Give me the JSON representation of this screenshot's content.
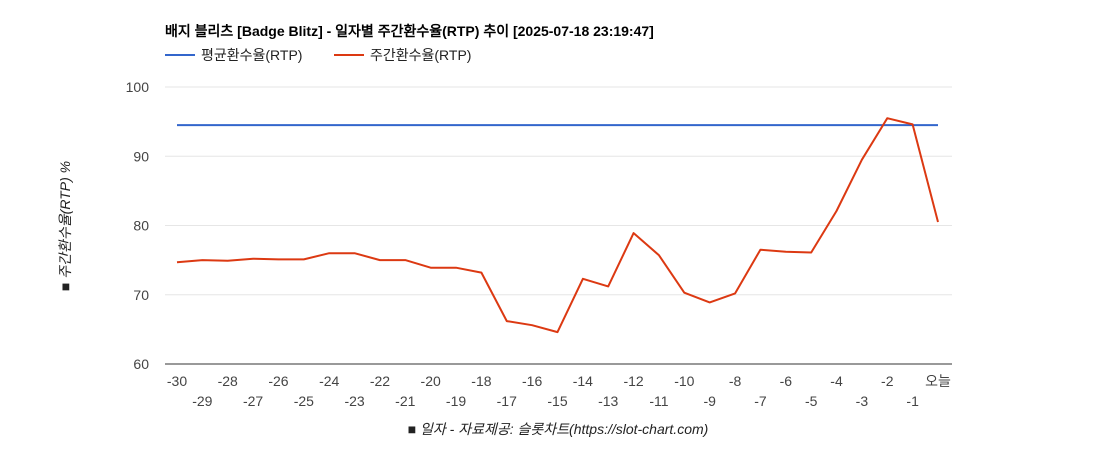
{
  "chart_data": {
    "type": "line",
    "title": "배지 블리츠 [Badge Blitz] - 일자별 주간환수율(RTP) 추이 [2025-07-18 23:19:47]",
    "xlabel": "■ 일자 - 자료제공: 슬롯차트(https://slot-chart.com)",
    "ylabel": "■ 주간환수율(RTP) %",
    "ylim": [
      60,
      100
    ],
    "yticks": [
      60,
      70,
      80,
      90,
      100
    ],
    "grid": true,
    "legend_position": "top-left",
    "categories": [
      "-30",
      "-29",
      "-28",
      "-27",
      "-26",
      "-25",
      "-24",
      "-23",
      "-22",
      "-21",
      "-20",
      "-19",
      "-18",
      "-17",
      "-16",
      "-15",
      "-14",
      "-13",
      "-12",
      "-11",
      "-10",
      "-9",
      "-8",
      "-7",
      "-6",
      "-5",
      "-4",
      "-3",
      "-2",
      "-1",
      "오늘"
    ],
    "series": [
      {
        "name": "평균환수율(RTP)",
        "color": "#3366cc",
        "values": [
          94.5,
          94.5,
          94.5,
          94.5,
          94.5,
          94.5,
          94.5,
          94.5,
          94.5,
          94.5,
          94.5,
          94.5,
          94.5,
          94.5,
          94.5,
          94.5,
          94.5,
          94.5,
          94.5,
          94.5,
          94.5,
          94.5,
          94.5,
          94.5,
          94.5,
          94.5,
          94.5,
          94.5,
          94.5,
          94.5,
          94.5
        ]
      },
      {
        "name": "주간환수율(RTP)",
        "color": "#dc3912",
        "values": [
          74.7,
          75.0,
          74.9,
          75.2,
          75.1,
          75.1,
          76.0,
          76.0,
          75.0,
          75.0,
          73.9,
          73.9,
          73.2,
          66.2,
          65.6,
          64.6,
          72.3,
          71.2,
          78.9,
          75.7,
          70.3,
          68.9,
          70.2,
          76.5,
          76.2,
          76.1,
          82.1,
          89.5,
          95.5,
          94.6,
          80.5
        ]
      }
    ]
  }
}
